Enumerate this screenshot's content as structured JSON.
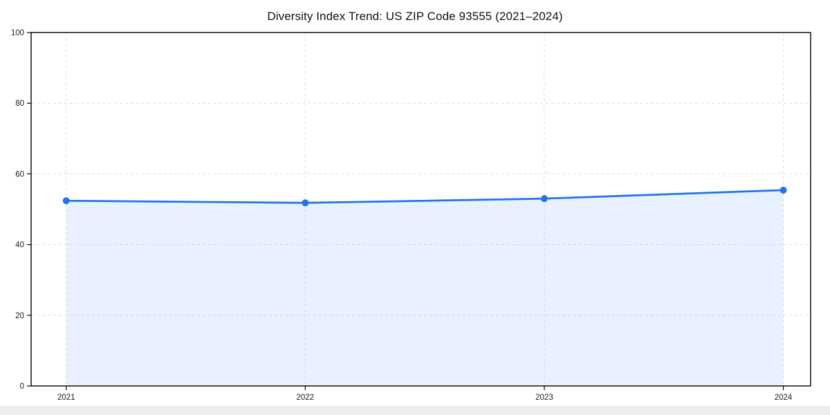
{
  "chart_data": {
    "type": "line",
    "title": "Diversity Index Trend: US ZIP Code 93555 (2021–2024)",
    "categories": [
      "2021",
      "2022",
      "2023",
      "2024"
    ],
    "values": [
      52.4,
      51.8,
      53.0,
      55.4
    ],
    "xlabel": "",
    "ylabel": "",
    "ylim": [
      0,
      100
    ],
    "yticks": [
      0,
      20,
      40,
      60,
      80,
      100
    ],
    "grid": "dashed",
    "legend": "none",
    "colors": {
      "line": "#2273e8",
      "marker": "#2273e8",
      "fill": "#2273e8",
      "fill_opacity": 0.1,
      "gridline": "#dedede",
      "spine": "#000000",
      "tick_label": "#1a1a1a",
      "background": "#ffffff",
      "bottom_bar": "#ecedef"
    }
  }
}
